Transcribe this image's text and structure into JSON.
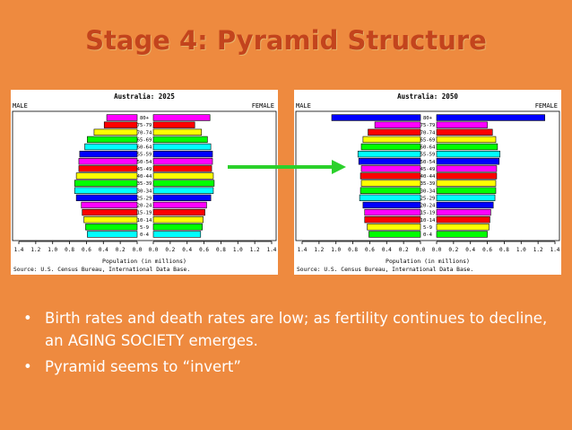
{
  "slide": {
    "title": "Stage 4: Pyramid Structure",
    "bullets": [
      "Birth rates and death rates are low; as fertility continues to decline, an AGING SOCIETY emerges.",
      "Pyramid seems to “invert”"
    ],
    "bullet_glyph": "•",
    "arrow_color": "#2bd12b"
  },
  "chart_data": [
    {
      "type": "bar",
      "title": "Australia: 2025",
      "left_label": "MALE",
      "right_label": "FEMALE",
      "xlabel": "Population (in millions)",
      "source": "Source: U.S. Census Bureau, International Data Base.",
      "xlim": [
        0,
        1.4
      ],
      "x_ticks": [
        "1.4",
        "1.2",
        "1.0",
        "0.8",
        "0.6",
        "0.4",
        "0.2",
        "0.0",
        "0.0",
        "0.2",
        "0.4",
        "0.6",
        "0.8",
        "1.0",
        "1.2",
        "1.4"
      ],
      "categories": [
        "80+",
        "75-79",
        "70-74",
        "65-69",
        "60-64",
        "55-59",
        "50-54",
        "45-49",
        "40-44",
        "35-39",
        "30-34",
        "25-29",
        "20-24",
        "15-19",
        "10-14",
        "5-9",
        "0-4"
      ],
      "colors": [
        "#ff00ff",
        "#ff0000",
        "#ffff00",
        "#00ff00",
        "#00ffff",
        "#0000ff",
        "#ff00ff",
        "#ff0000",
        "#ffff00",
        "#00ff00",
        "#00ffff",
        "#0000ff",
        "#ff00ff",
        "#ff0000",
        "#ffff00",
        "#00ff00",
        "#00ffff"
      ],
      "series": [
        {
          "name": "MALE",
          "values": [
            0.36,
            0.39,
            0.51,
            0.59,
            0.62,
            0.68,
            0.69,
            0.69,
            0.72,
            0.74,
            0.74,
            0.72,
            0.66,
            0.65,
            0.63,
            0.61,
            0.59
          ]
        },
        {
          "name": "FEMALE",
          "values": [
            0.67,
            0.49,
            0.57,
            0.64,
            0.68,
            0.7,
            0.7,
            0.69,
            0.71,
            0.72,
            0.71,
            0.68,
            0.63,
            0.61,
            0.59,
            0.58,
            0.56
          ]
        }
      ]
    },
    {
      "type": "bar",
      "title": "Australia: 2050",
      "left_label": "MALE",
      "right_label": "FEMALE",
      "xlabel": "Population (in millions)",
      "source": "Source: U.S. Census Bureau, International Data Base.",
      "xlim": [
        0,
        1.4
      ],
      "x_ticks": [
        "1.4",
        "1.2",
        "1.0",
        "0.8",
        "0.6",
        "0.4",
        "0.2",
        "0.0",
        "0.0",
        "0.2",
        "0.4",
        "0.6",
        "0.8",
        "1.0",
        "1.2",
        "1.4"
      ],
      "categories": [
        "80+",
        "75-79",
        "70-74",
        "65-69",
        "60-64",
        "55-59",
        "50-54",
        "45-49",
        "40-44",
        "35-39",
        "30-34",
        "25-29",
        "20-24",
        "15-19",
        "10-14",
        "5-9",
        "0-4"
      ],
      "colors": [
        "#0000ff",
        "#ff00ff",
        "#ff0000",
        "#ffff00",
        "#00ff00",
        "#00ffff",
        "#0000ff",
        "#ff00ff",
        "#ff0000",
        "#ffff00",
        "#00ff00",
        "#00ffff",
        "#0000ff",
        "#ff00ff",
        "#ff0000",
        "#ffff00",
        "#00ff00"
      ],
      "series": [
        {
          "name": "MALE",
          "values": [
            1.05,
            0.54,
            0.62,
            0.68,
            0.7,
            0.74,
            0.73,
            0.7,
            0.71,
            0.7,
            0.71,
            0.72,
            0.68,
            0.66,
            0.66,
            0.63,
            0.61
          ]
        },
        {
          "name": "FEMALE",
          "values": [
            1.28,
            0.6,
            0.66,
            0.7,
            0.72,
            0.75,
            0.74,
            0.71,
            0.71,
            0.7,
            0.7,
            0.69,
            0.67,
            0.64,
            0.63,
            0.62,
            0.6
          ]
        }
      ]
    }
  ]
}
